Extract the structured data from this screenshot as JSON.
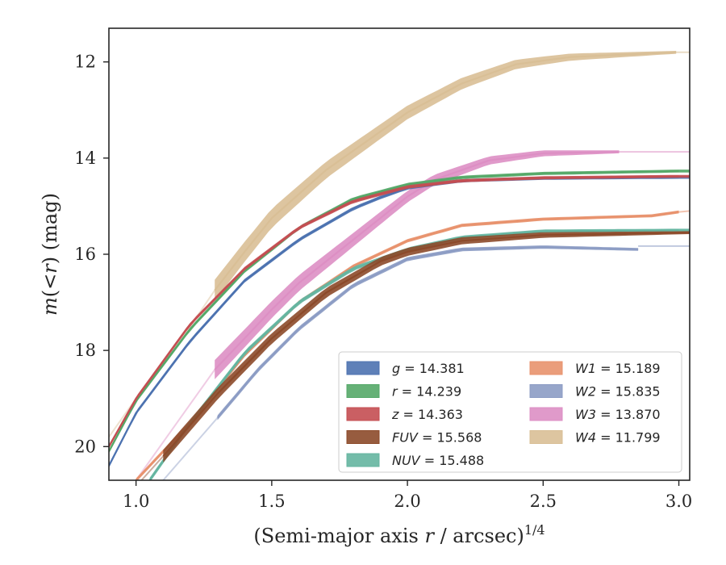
{
  "chart_data": {
    "type": "line",
    "title": "",
    "xlabel_parts": [
      "(Semi-major axis ",
      "r",
      " / arcsec)",
      "1/4"
    ],
    "ylabel_parts": [
      "m",
      "(<",
      "r",
      ")",
      " (mag)"
    ],
    "xlim": [
      0.9,
      3.04
    ],
    "ylim": [
      20.7,
      11.3
    ],
    "y_inverted": true,
    "grid": false,
    "legend_position": "lower-right",
    "x_ticks": [
      {
        "value": 1.0,
        "label": "1.0"
      },
      {
        "value": 1.5,
        "label": "1.5"
      },
      {
        "value": 2.0,
        "label": "2.0"
      },
      {
        "value": 2.5,
        "label": "2.5"
      },
      {
        "value": 3.0,
        "label": "3.0"
      }
    ],
    "y_ticks": [
      {
        "value": 12,
        "label": "12"
      },
      {
        "value": 14,
        "label": "14"
      },
      {
        "value": 16,
        "label": "16"
      },
      {
        "value": 18,
        "label": "18"
      },
      {
        "value": 20,
        "label": "20"
      }
    ],
    "series": [
      {
        "band": "g",
        "value": "14.381",
        "color": "#4c72b0",
        "x": [
          0.9,
          1.0,
          1.2,
          1.4,
          1.6,
          1.8,
          1.9,
          2.0,
          2.2,
          2.5,
          3.0
        ],
        "y": [
          20.4,
          19.3,
          17.8,
          16.55,
          15.7,
          15.05,
          14.82,
          14.62,
          14.47,
          14.42,
          14.4
        ],
        "band_x": [
          0.9,
          3.04
        ],
        "band_halfwidth": 0.04,
        "ext_x": [
          3.0,
          3.04
        ],
        "ext_y": [
          14.4,
          14.4
        ]
      },
      {
        "band": "r",
        "value": "14.239",
        "color": "#55a868",
        "x": [
          0.9,
          1.0,
          1.2,
          1.4,
          1.6,
          1.8,
          2.0,
          2.2,
          2.5,
          3.0
        ],
        "y": [
          20.1,
          19.05,
          17.55,
          16.35,
          15.45,
          14.85,
          14.55,
          14.4,
          14.32,
          14.27
        ],
        "band_x": [
          0.9,
          3.04
        ],
        "band_halfwidth": 0.04,
        "ext_x": [
          3.0,
          3.04
        ],
        "ext_y": [
          14.27,
          14.27
        ]
      },
      {
        "band": "z",
        "value": "14.363",
        "color": "#c44e52",
        "x": [
          0.9,
          1.0,
          1.2,
          1.4,
          1.6,
          1.8,
          2.0,
          2.2,
          2.5,
          3.0
        ],
        "y": [
          20.0,
          19.0,
          17.45,
          16.3,
          15.45,
          14.9,
          14.6,
          14.47,
          14.41,
          14.38
        ],
        "band_x": [
          0.9,
          3.04
        ],
        "band_halfwidth": 0.04,
        "ext_x": [
          3.0,
          3.04
        ],
        "ext_y": [
          14.38,
          14.38
        ]
      },
      {
        "band": "FUV",
        "value": "15.568",
        "color": "#8c4a2a",
        "x": [
          1.1,
          1.3,
          1.5,
          1.7,
          1.9,
          2.0,
          2.2,
          2.5,
          3.04
        ],
        "y": [
          20.2,
          18.9,
          17.75,
          16.8,
          16.15,
          15.95,
          15.72,
          15.6,
          15.55
        ],
        "band_x": [
          1.1,
          3.04
        ],
        "band_halfwidth": 0.13,
        "faint_x": [
          1.02,
          1.1
        ],
        "faint_y": [
          20.7,
          20.2
        ],
        "ext_x": [
          3.0,
          3.04
        ],
        "ext_y": [
          15.55,
          15.55
        ]
      },
      {
        "band": "NUV",
        "value": "15.488",
        "color": "#64b5a0",
        "x": [
          1.05,
          1.2,
          1.4,
          1.6,
          1.8,
          2.0,
          2.2,
          2.5,
          3.0
        ],
        "y": [
          20.7,
          19.5,
          18.05,
          17.0,
          16.3,
          15.9,
          15.65,
          15.52,
          15.5
        ],
        "band_x": [
          1.05,
          3.04
        ],
        "band_halfwidth": 0.05,
        "ext_x": [
          3.0,
          3.04
        ],
        "ext_y": [
          15.5,
          15.5
        ]
      },
      {
        "band": "W1",
        "value": "15.189",
        "color": "#e8926d",
        "x": [
          1.0,
          1.2,
          1.4,
          1.6,
          1.8,
          2.0,
          2.2,
          2.5,
          2.9,
          3.0
        ],
        "y": [
          20.7,
          19.5,
          18.1,
          17.0,
          16.25,
          15.72,
          15.4,
          15.27,
          15.2,
          15.12
        ],
        "band_x": [
          1.0,
          3.0
        ],
        "band_halfwidth": 0.04,
        "ext_x": [
          3.0,
          3.04
        ],
        "ext_y": [
          15.12,
          15.1
        ]
      },
      {
        "band": "W2",
        "value": "15.835",
        "color": "#8c9cc4",
        "x": [
          1.3,
          1.45,
          1.6,
          1.8,
          2.0,
          2.2,
          2.5,
          2.85
        ],
        "y": [
          19.4,
          18.4,
          17.55,
          16.65,
          16.1,
          15.9,
          15.85,
          15.9
        ],
        "band_x": [
          1.3,
          2.85
        ],
        "band_halfwidth": 0.05,
        "faint_x": [
          1.1,
          1.3
        ],
        "faint_y": [
          20.7,
          19.4
        ],
        "ext_x": [
          2.85,
          3.04
        ],
        "ext_y": [
          15.83,
          15.83
        ]
      },
      {
        "band": "W3",
        "value": "13.870",
        "color": "#dd8fc4",
        "x": [
          1.29,
          1.4,
          1.5,
          1.6,
          1.8,
          1.9,
          2.0,
          2.1,
          2.3,
          2.5,
          2.78
        ],
        "y": [
          18.4,
          17.75,
          17.15,
          16.6,
          15.7,
          15.25,
          14.8,
          14.45,
          14.05,
          13.9,
          13.87
        ],
        "band_x": [
          1.29,
          2.78
        ],
        "band_halfwidth": 0.2,
        "faint_x": [
          1.0,
          1.29
        ],
        "faint_y": [
          20.7,
          18.4
        ],
        "ext_x": [
          2.78,
          3.04
        ],
        "ext_y": [
          13.87,
          13.87
        ]
      },
      {
        "band": "W4",
        "value": "11.799",
        "color": "#d9bf96",
        "x": [
          1.29,
          1.4,
          1.5,
          1.6,
          1.7,
          1.8,
          2.0,
          2.2,
          2.4,
          2.6,
          2.99
        ],
        "y": [
          16.75,
          15.95,
          15.25,
          14.75,
          14.25,
          13.85,
          13.05,
          12.45,
          12.05,
          11.9,
          11.8
        ],
        "band_x": [
          1.29,
          2.99
        ],
        "band_halfwidth": 0.22,
        "faint_x": [
          0.9,
          1.0,
          1.1,
          1.2,
          1.29
        ],
        "faint_y": [
          19.8,
          19.0,
          18.3,
          17.5,
          16.75
        ],
        "ext_x": [
          2.99,
          3.04
        ],
        "ext_y": [
          11.8,
          11.8
        ]
      }
    ]
  }
}
